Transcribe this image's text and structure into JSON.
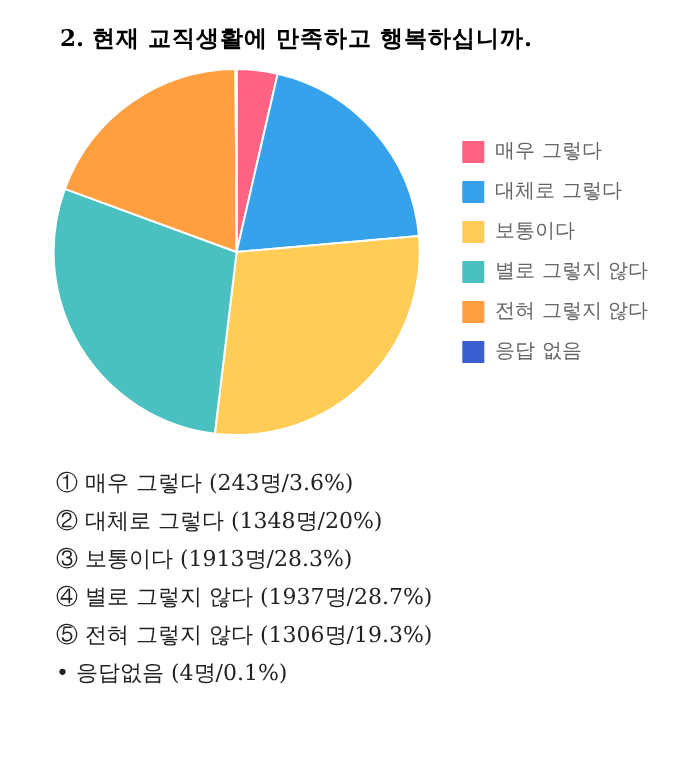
{
  "chart_data": {
    "type": "pie",
    "title": "2. 현재 교직생활에 만족하고 행복하십니까.",
    "categories": [
      "매우 그렇다",
      "대체로 그렇다",
      "보통이다",
      "별로 그렇지 않다",
      "전혀 그렇지 않다",
      "응답 없음"
    ],
    "values": [
      3.6,
      20,
      28.3,
      28.7,
      19.3,
      0.1
    ],
    "colors": [
      "#ff6384",
      "#36a2eb",
      "#ffcd56",
      "#4bc0c0",
      "#ff9f40",
      "#3b5fd0"
    ],
    "legend": "right",
    "annotations": [
      "① 매우 그렇다 (243명/3.6%)",
      "② 대체로 그렇다 (1348명/20%)",
      "③ 보통이다 (1913명/28.3%)",
      "④ 별로 그렇지 않다 (1937명/28.7%)",
      "⑤ 전혀 그렇지 않다 (1306명/19.3%)",
      "• 응답없음 (4명/0.1%)"
    ]
  }
}
